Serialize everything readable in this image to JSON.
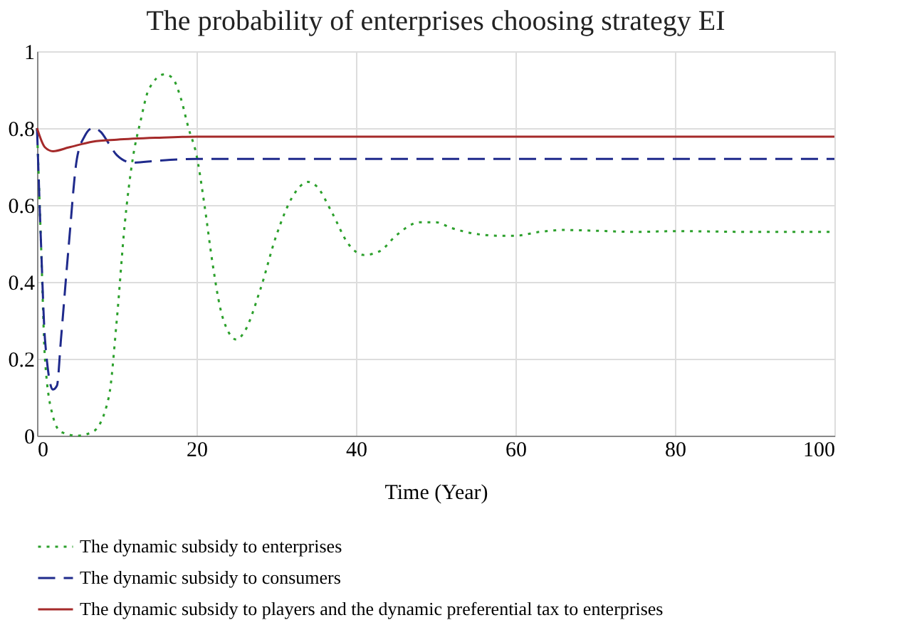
{
  "chart_data": {
    "type": "line",
    "title": "The probability of enterprises choosing strategy EI",
    "xlabel": "Time (Year)",
    "xlim": [
      0,
      100
    ],
    "xticks": [
      0,
      20,
      40,
      60,
      80,
      100
    ],
    "ylim": [
      0,
      1
    ],
    "yticks": [
      0,
      0.2,
      0.4,
      0.6,
      0.8,
      1
    ],
    "grid": true,
    "legend": "bottom",
    "marker": "none",
    "series": [
      {
        "name": "The dynamic subsidy to enterprises",
        "color": "#2ca02c",
        "line_style": "dotted",
        "x": [
          0,
          0.5,
          1,
          2,
          3,
          5,
          7,
          9,
          10,
          11,
          12,
          13,
          14,
          16,
          17,
          18,
          19,
          20,
          21,
          22,
          23,
          24,
          25,
          26,
          28,
          30,
          32,
          34,
          35,
          37,
          39,
          41,
          43,
          45,
          48,
          50,
          52,
          55,
          58,
          60,
          63,
          66,
          70,
          75,
          80,
          90,
          100
        ],
        "values": [
          0.8,
          0.5,
          0.2,
          0.05,
          0.01,
          0.0,
          0.01,
          0.1,
          0.3,
          0.55,
          0.72,
          0.82,
          0.9,
          0.94,
          0.93,
          0.88,
          0.8,
          0.73,
          0.6,
          0.45,
          0.33,
          0.27,
          0.25,
          0.27,
          0.38,
          0.52,
          0.62,
          0.66,
          0.65,
          0.58,
          0.5,
          0.47,
          0.48,
          0.52,
          0.555,
          0.555,
          0.54,
          0.525,
          0.52,
          0.52,
          0.53,
          0.535,
          0.533,
          0.53,
          0.532,
          0.53,
          0.53
        ]
      },
      {
        "name": "The dynamic subsidy to consumers",
        "color": "#1f2a8c",
        "line_style": "dashed",
        "x": [
          0,
          0.5,
          1,
          2,
          2.5,
          3,
          4,
          5,
          6,
          7,
          8,
          9,
          10,
          12,
          15,
          20,
          100
        ],
        "values": [
          0.8,
          0.5,
          0.25,
          0.12,
          0.13,
          0.25,
          0.5,
          0.72,
          0.78,
          0.8,
          0.79,
          0.76,
          0.73,
          0.71,
          0.715,
          0.72,
          0.72
        ]
      },
      {
        "name": "The dynamic subsidy to players and the dynamic preferential tax to enterprises",
        "color": "#a52a2a",
        "line_style": "solid",
        "x": [
          0,
          1,
          2,
          4,
          7,
          10,
          15,
          20,
          100
        ],
        "values": [
          0.8,
          0.75,
          0.74,
          0.75,
          0.765,
          0.77,
          0.775,
          0.778,
          0.778
        ]
      }
    ]
  }
}
